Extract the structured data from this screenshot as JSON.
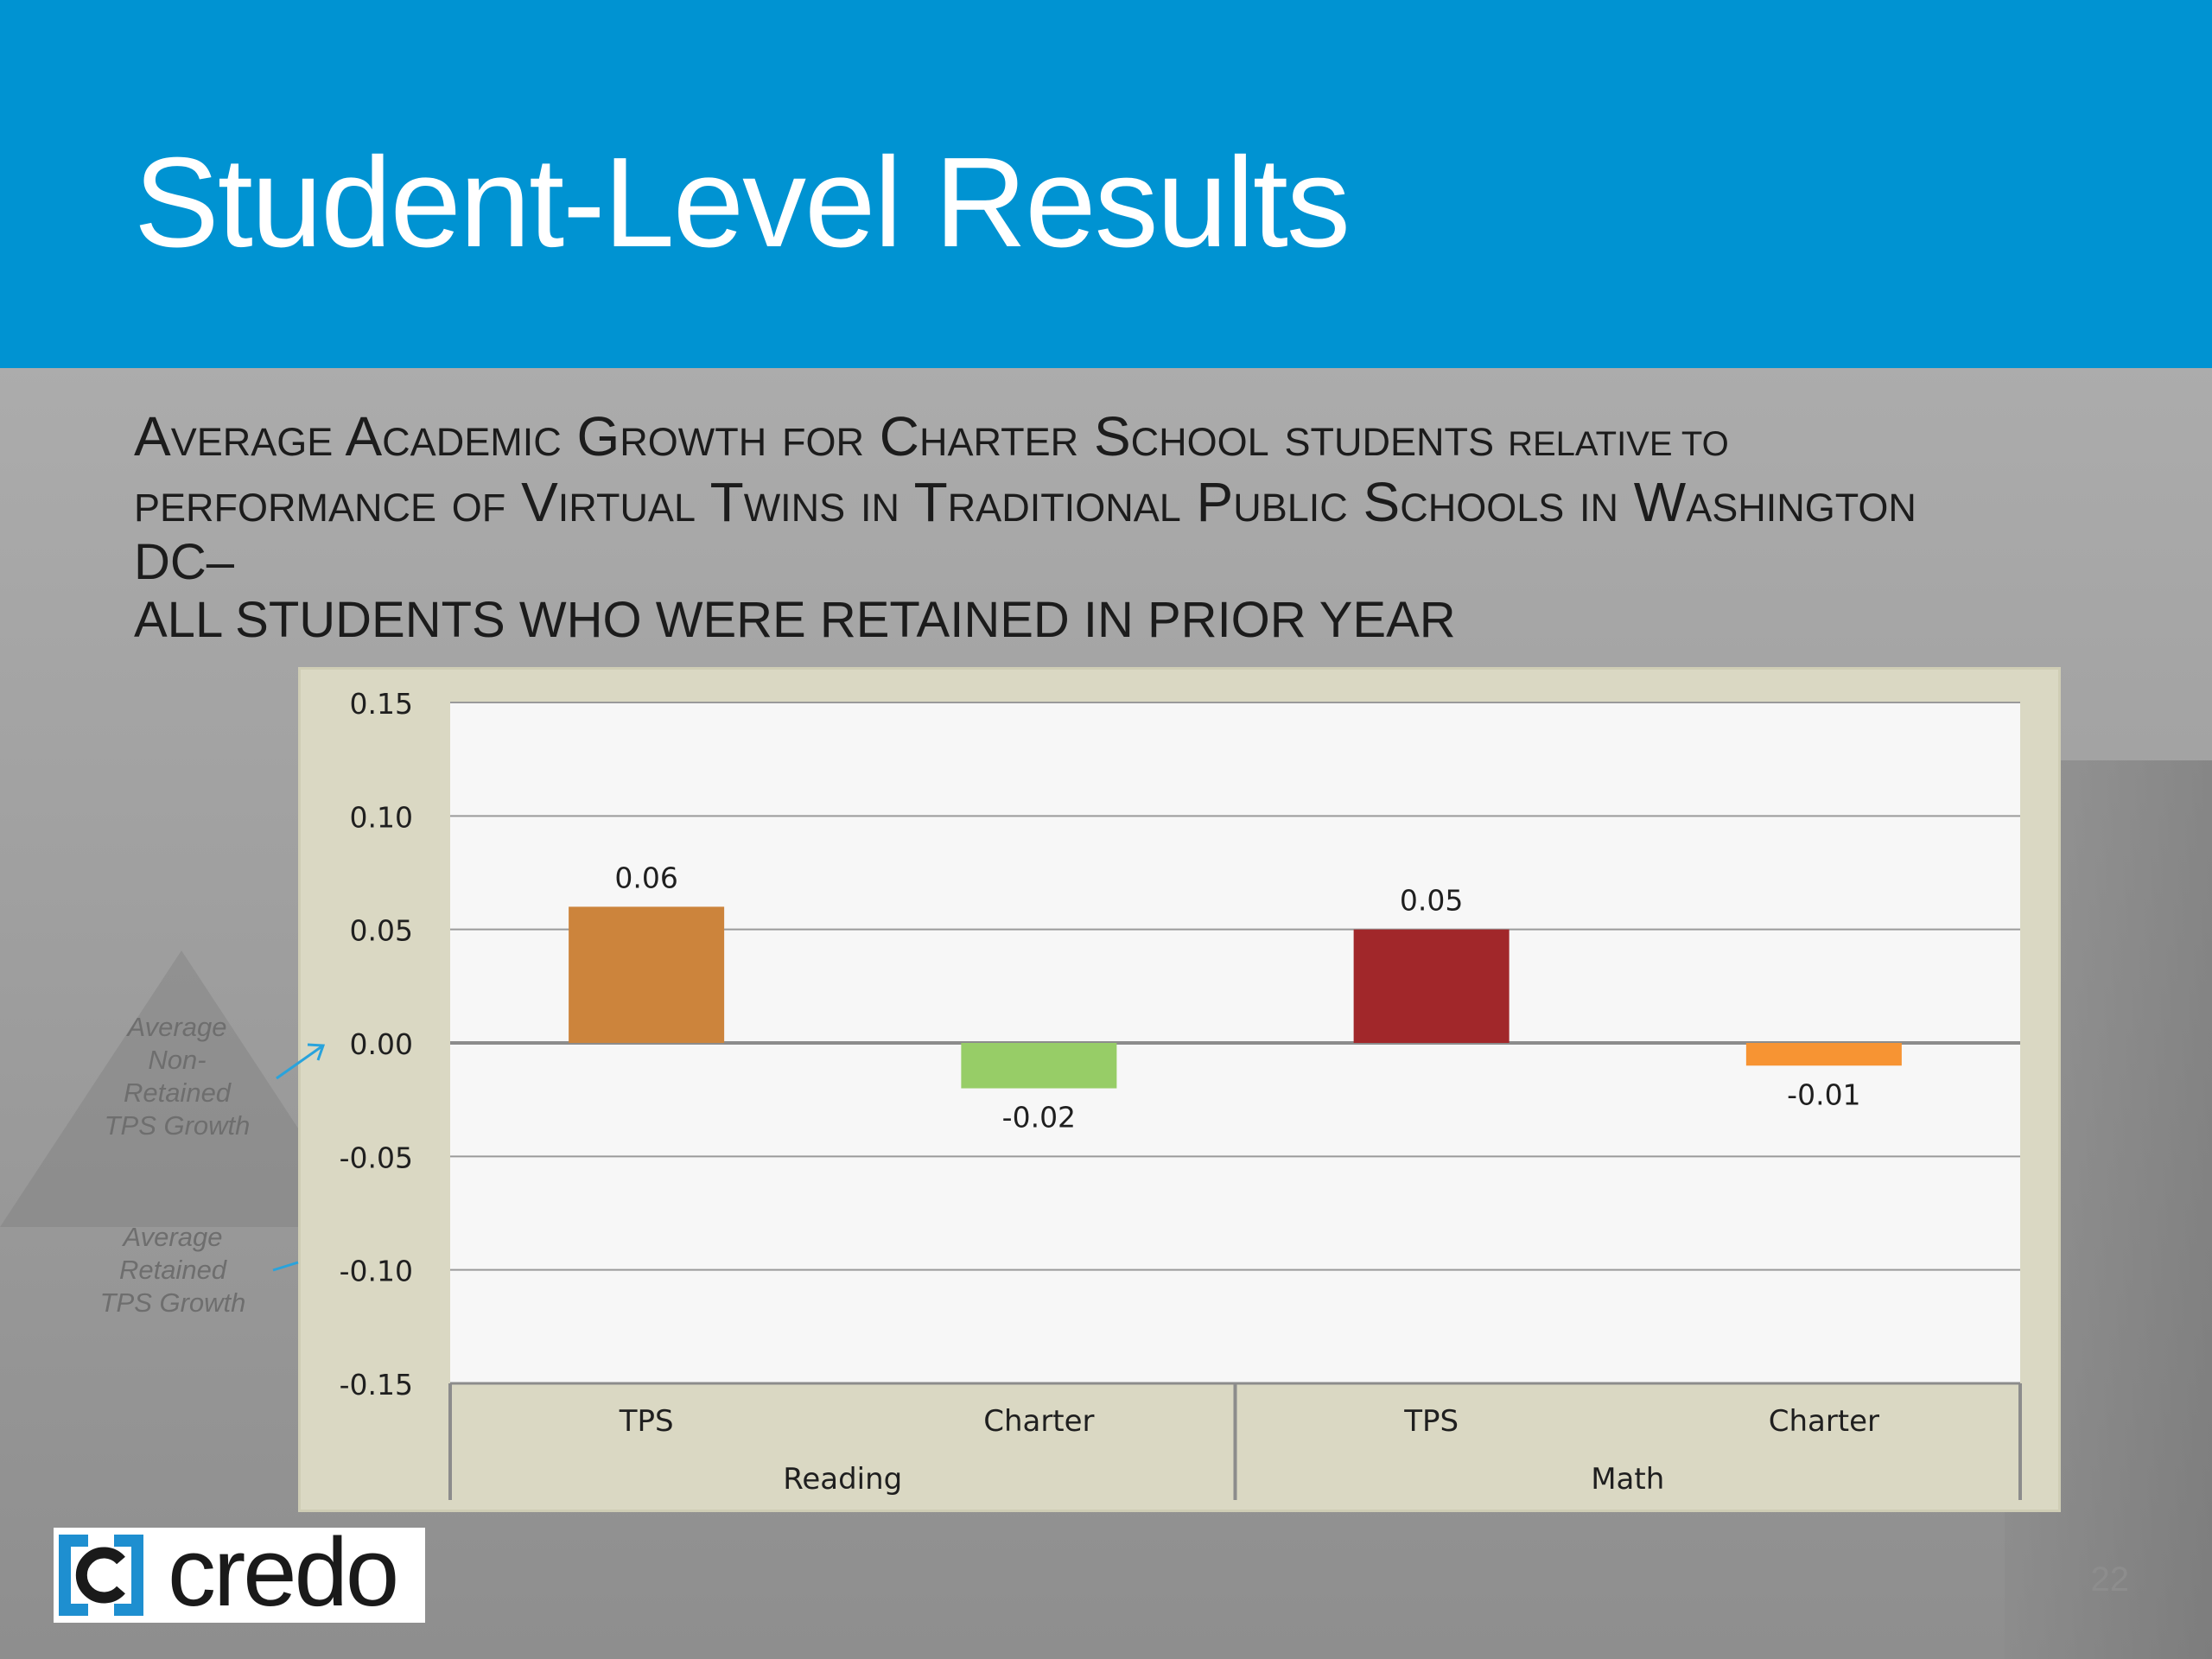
{
  "slide": {
    "title": "Student-Level Results",
    "subtitle": {
      "line1_caps": "Average Academic Growth for Charter School students",
      "line1_small": "relative to",
      "line2": "performance of Virtual Twins in Traditional Public Schools in Washington",
      "line3": "DC–",
      "line4": "ALL STUDENTS WHO WERE RETAINED IN PRIOR YEAR"
    },
    "notes": {
      "non_retained": [
        "Average",
        "Non-",
        "Retained",
        "TPS Growth"
      ],
      "retained": [
        "Average",
        "Retained",
        "TPS Growth"
      ]
    },
    "logo_text": "credo",
    "page_number": "22"
  },
  "colors": {
    "header": "#0093d2",
    "frame": "#dad8c3",
    "plot_bg": "#f7f7f7",
    "arrow": "#29a3dc"
  },
  "icons": {
    "logo": "credo-bracket-logo-icon",
    "annotation_arrow": "arrow-up-right-icon",
    "annotation_line": "pointer-line-icon"
  },
  "chart_data": {
    "type": "bar",
    "title": "",
    "xlabel": "",
    "ylabel": "",
    "ylim": [
      -0.15,
      0.15
    ],
    "yticks": [
      "0.15",
      "0.10",
      "0.05",
      "0.00",
      "-0.05",
      "-0.10",
      "-0.15"
    ],
    "ytick_values": [
      0.15,
      0.1,
      0.05,
      0.0,
      -0.05,
      -0.1,
      -0.15
    ],
    "grid": true,
    "groups": [
      {
        "label": "Reading",
        "categories": [
          "TPS",
          "Charter"
        ]
      },
      {
        "label": "Math",
        "categories": [
          "TPS",
          "Charter"
        ]
      }
    ],
    "bars": [
      {
        "category": "TPS",
        "group": "Reading",
        "value": 0.06,
        "label": "0.06",
        "color": "#cc843c"
      },
      {
        "category": "Charter",
        "group": "Reading",
        "value": -0.02,
        "label": "-0.02",
        "color": "#97cd67"
      },
      {
        "category": "TPS",
        "group": "Math",
        "value": 0.05,
        "label": "0.05",
        "color": "#a1272a"
      },
      {
        "category": "Charter",
        "group": "Math",
        "value": -0.01,
        "label": "-0.01",
        "color": "#f79433"
      }
    ]
  }
}
